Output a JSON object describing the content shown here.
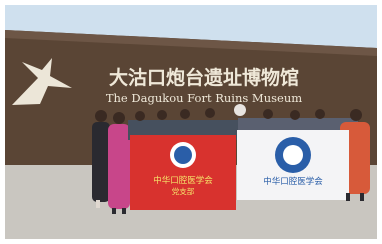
{
  "sign": {
    "title": "大沽口炮台遗址博物馆",
    "subtitle": "The Dagukou Fort Ruins Museum"
  },
  "banners": [
    {
      "lines": [
        "中华口腔医学会",
        "党支部"
      ]
    },
    {
      "lines": [
        "中华口腔医学会"
      ]
    }
  ]
}
